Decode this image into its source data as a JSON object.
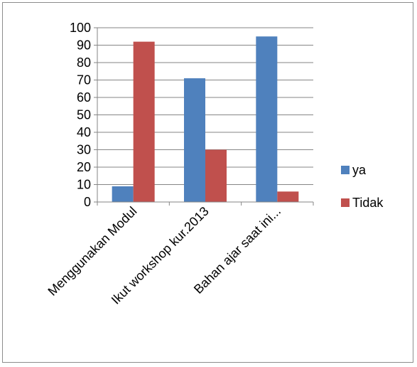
{
  "chart_data": {
    "type": "bar",
    "title": "",
    "xlabel": "",
    "ylabel": "",
    "categories": [
      "Menggunakan Modul",
      "Ikut workshop kur.2013",
      "Bahan ajar saat ini..."
    ],
    "series": [
      {
        "name": "ya",
        "color": "#4f81bd",
        "values": [
          9,
          71,
          95
        ]
      },
      {
        "name": "Tidak",
        "color": "#c0504d",
        "values": [
          92,
          30,
          6
        ]
      }
    ],
    "ylim": [
      0,
      100
    ],
    "yticks": [
      0,
      10,
      20,
      30,
      40,
      50,
      60,
      70,
      80,
      90,
      100
    ],
    "grid": true,
    "legend": "right",
    "gridline_color": "#868686"
  }
}
